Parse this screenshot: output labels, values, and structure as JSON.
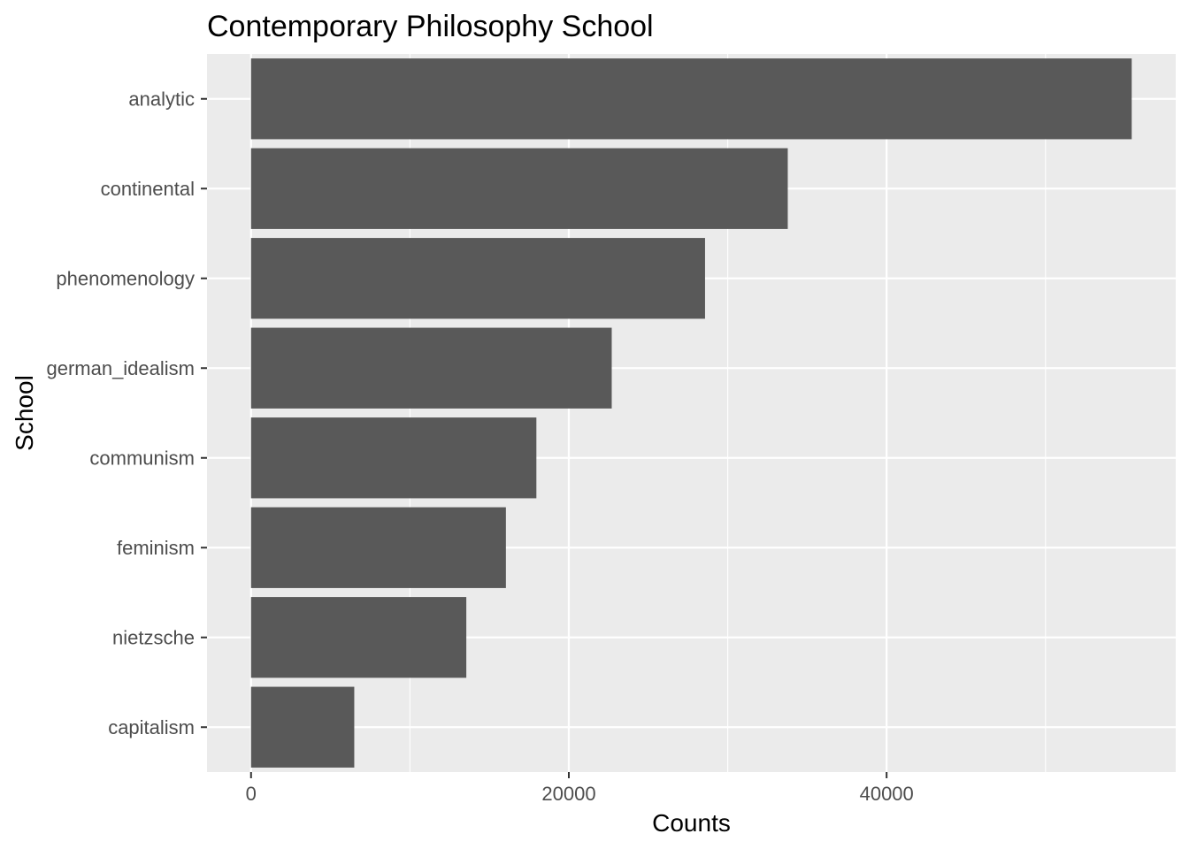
{
  "chart_data": {
    "type": "bar",
    "orientation": "horizontal",
    "title": "Contemporary Philosophy School",
    "xlabel": "Counts",
    "ylabel": "School",
    "categories": [
      "analytic",
      "continental",
      "phenomenology",
      "german_idealism",
      "communism",
      "feminism",
      "nietzsche",
      "capitalism"
    ],
    "values": [
      55425,
      33779,
      28573,
      22700,
      17958,
      16040,
      13548,
      6496
    ],
    "x_ticks": [
      0,
      20000,
      40000
    ],
    "x_tick_labels": [
      "0",
      "20000",
      "40000"
    ],
    "xlim": [
      -2771,
      58196
    ],
    "grid": true,
    "colors": {
      "bar": "#595959",
      "panel": "#ebebeb",
      "grid": "#ffffff",
      "tick": "#333333"
    }
  }
}
